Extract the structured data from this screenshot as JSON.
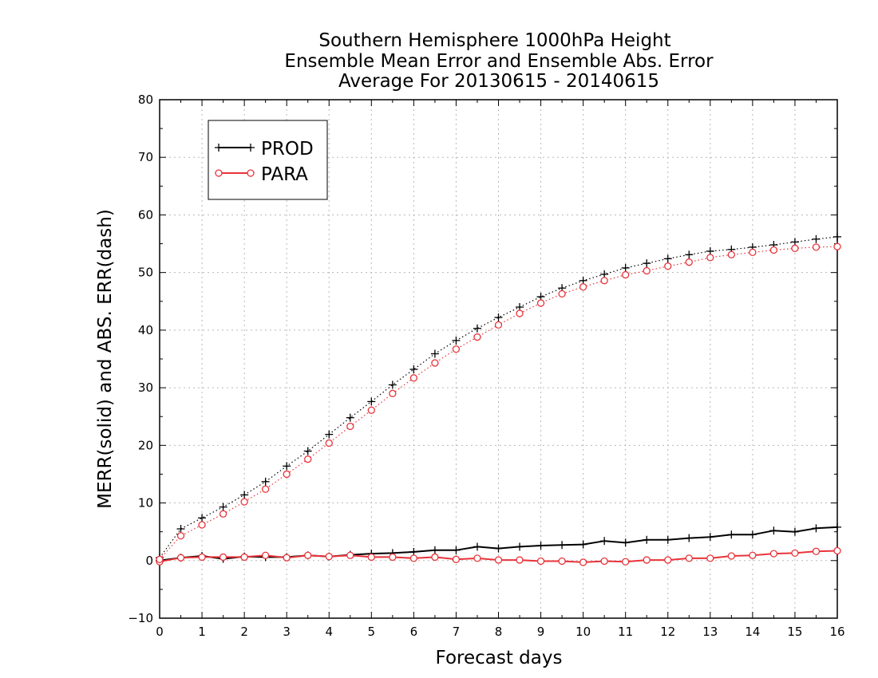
{
  "chart_data": {
    "type": "line",
    "title": [
      "Southern Hemisphere 1000hPa Height",
      "Ensemble Mean Error and Ensemble Abs. Error",
      "Average For 20130615 - 20140615"
    ],
    "xlabel": "Forecast days",
    "ylabel": "MERR(solid) and ABS. ERR(dash)",
    "xlim": [
      0,
      16
    ],
    "ylim": [
      -10,
      80
    ],
    "xticks": [
      0,
      1,
      2,
      3,
      4,
      5,
      6,
      7,
      8,
      9,
      10,
      11,
      12,
      13,
      14,
      15,
      16
    ],
    "yticks": [
      -10,
      0,
      10,
      20,
      30,
      40,
      50,
      60,
      70,
      80
    ],
    "grid": true,
    "legend_position": "top-left",
    "x": [
      0,
      0.5,
      1,
      1.5,
      2,
      2.5,
      3,
      3.5,
      4,
      4.5,
      5,
      5.5,
      6,
      6.5,
      7,
      7.5,
      8,
      8.5,
      9,
      9.5,
      10,
      10.5,
      11,
      11.5,
      12,
      12.5,
      13,
      13.5,
      14,
      14.5,
      15,
      15.5,
      16
    ],
    "series": [
      {
        "name": "PROD",
        "metric": "merr",
        "color": "#000000",
        "marker": "plus",
        "linestyle": "solid",
        "values": [
          0,
          0.5,
          0.8,
          0.3,
          0.7,
          0.6,
          0.6,
          0.9,
          0.7,
          1.0,
          1.2,
          1.3,
          1.5,
          1.8,
          1.8,
          2.4,
          2.1,
          2.4,
          2.6,
          2.7,
          2.8,
          3.4,
          3.1,
          3.6,
          3.6,
          3.9,
          4.1,
          4.5,
          4.5,
          5.2,
          5.0,
          5.6,
          5.8
        ]
      },
      {
        "name": "PARA",
        "metric": "merr",
        "color": "#e8343a",
        "marker": "circle",
        "linestyle": "solid",
        "values": [
          -0.2,
          0.5,
          0.6,
          0.6,
          0.6,
          0.9,
          0.5,
          0.9,
          0.7,
          0.9,
          0.6,
          0.6,
          0.4,
          0.6,
          0.2,
          0.4,
          0.1,
          0.1,
          -0.1,
          -0.1,
          -0.3,
          -0.1,
          -0.2,
          0.1,
          0.1,
          0.4,
          0.4,
          0.8,
          0.9,
          1.2,
          1.3,
          1.6,
          1.7
        ]
      },
      {
        "name": "PROD",
        "metric": "abs_err",
        "color": "#000000",
        "marker": "plus",
        "linestyle": "dotted",
        "values": [
          0.5,
          5.5,
          7.4,
          9.3,
          11.4,
          13.7,
          16.4,
          19.0,
          21.9,
          24.8,
          27.6,
          30.5,
          33.2,
          35.9,
          38.2,
          40.3,
          42.2,
          44.0,
          45.8,
          47.3,
          48.6,
          49.7,
          50.8,
          51.6,
          52.4,
          53.1,
          53.7,
          54.0,
          54.4,
          54.8,
          55.3,
          55.8,
          56.2
        ]
      },
      {
        "name": "PARA",
        "metric": "abs_err",
        "color": "#e8343a",
        "marker": "circle",
        "linestyle": "dotted",
        "values": [
          0.2,
          4.3,
          6.2,
          8.1,
          10.2,
          12.4,
          15.0,
          17.6,
          20.4,
          23.3,
          26.1,
          29.0,
          31.7,
          34.3,
          36.7,
          38.8,
          40.9,
          42.9,
          44.7,
          46.3,
          47.5,
          48.6,
          49.6,
          50.3,
          51.1,
          51.8,
          52.6,
          53.1,
          53.5,
          53.9,
          54.2,
          54.4,
          54.5
        ]
      }
    ],
    "legend": [
      {
        "name": "PROD",
        "color": "#000000",
        "marker": "plus"
      },
      {
        "name": "PARA",
        "color": "#e8343a",
        "marker": "circle"
      }
    ]
  }
}
